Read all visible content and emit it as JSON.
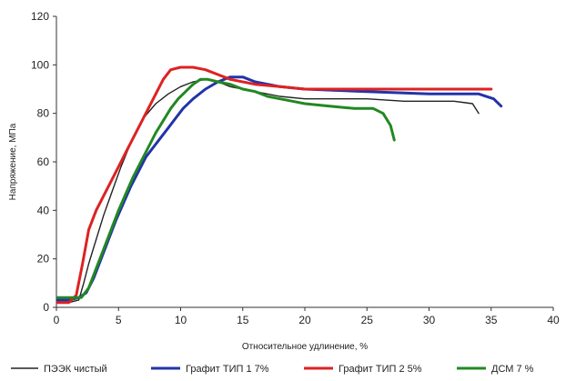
{
  "chart_data": {
    "type": "line",
    "xlabel": "Относительное удлинение, %",
    "ylabel": "Напряжение, МПа",
    "xlim": [
      0,
      40
    ],
    "ylim": [
      0,
      120
    ],
    "xticks": [
      "0",
      "5",
      "10",
      "15",
      "20",
      "25",
      "30",
      "35",
      "40"
    ],
    "yticks": [
      "0",
      "20",
      "40",
      "60",
      "80",
      "100",
      "120"
    ],
    "grid": false,
    "legend_position": "bottom",
    "series": [
      {
        "name": "ПЭЭК чистый",
        "color": "#222222",
        "x": [
          0,
          1,
          1.8,
          2.2,
          2.6,
          3.2,
          3.8,
          4.5,
          5.2,
          6,
          7,
          8,
          9,
          10,
          11,
          12,
          13,
          14,
          16,
          18,
          20,
          22,
          25,
          28,
          30,
          32,
          33.5,
          34
        ],
        "y": [
          2,
          2,
          3,
          10,
          18,
          28,
          38,
          48,
          58,
          68,
          78,
          84,
          88,
          91,
          93,
          94,
          93,
          91,
          89,
          87,
          86,
          86,
          86,
          85,
          85,
          85,
          84,
          80
        ]
      },
      {
        "name": "Графит ТИП 1 7%",
        "color": "#2233aa",
        "x": [
          0,
          1,
          1.8,
          2.4,
          3,
          3.6,
          4.2,
          4.8,
          5.4,
          6,
          6.6,
          7.2,
          7.8,
          8.4,
          9,
          9.6,
          10.2,
          11,
          12,
          13,
          14,
          15,
          16,
          18,
          20,
          25,
          30,
          34,
          35.2,
          35.8
        ],
        "y": [
          3,
          3,
          4,
          6,
          12,
          20,
          28,
          36,
          43,
          50,
          56,
          62,
          66,
          70,
          74,
          78,
          82,
          86,
          90,
          93,
          95,
          95,
          93,
          91,
          90,
          89,
          88,
          88,
          86,
          83
        ]
      },
      {
        "name": "Графит ТИП 2 5%",
        "color": "#dd2222",
        "x": [
          0,
          1,
          1.6,
          2.1,
          2.6,
          3.2,
          3.8,
          4.4,
          5,
          5.6,
          6.2,
          6.8,
          7.4,
          8,
          8.6,
          9.2,
          10,
          11,
          12,
          13,
          14,
          16,
          18,
          20,
          25,
          30,
          35
        ],
        "y": [
          2,
          2,
          5,
          18,
          32,
          40,
          46,
          52,
          58,
          64,
          70,
          76,
          82,
          88,
          94,
          98,
          99,
          99,
          98,
          96,
          94,
          92,
          91,
          90,
          90,
          90,
          90
        ]
      },
      {
        "name": "ДСМ 7 %",
        "color": "#228822",
        "x": [
          0,
          1,
          2,
          2.6,
          3.2,
          3.8,
          4.4,
          5,
          5.6,
          6.2,
          6.8,
          7.4,
          8,
          8.6,
          9.2,
          9.8,
          10.4,
          11,
          11.6,
          12.2,
          13,
          14,
          15,
          16,
          17,
          18,
          19,
          20,
          22,
          24,
          25.5,
          26.3,
          26.9,
          27.2
        ],
        "y": [
          4,
          4,
          4,
          8,
          16,
          24,
          32,
          40,
          47,
          54,
          60,
          66,
          72,
          77,
          82,
          86,
          89,
          92,
          94,
          94,
          93,
          92,
          90,
          89,
          87,
          86,
          85,
          84,
          83,
          82,
          82,
          80,
          75,
          69
        ]
      }
    ]
  }
}
